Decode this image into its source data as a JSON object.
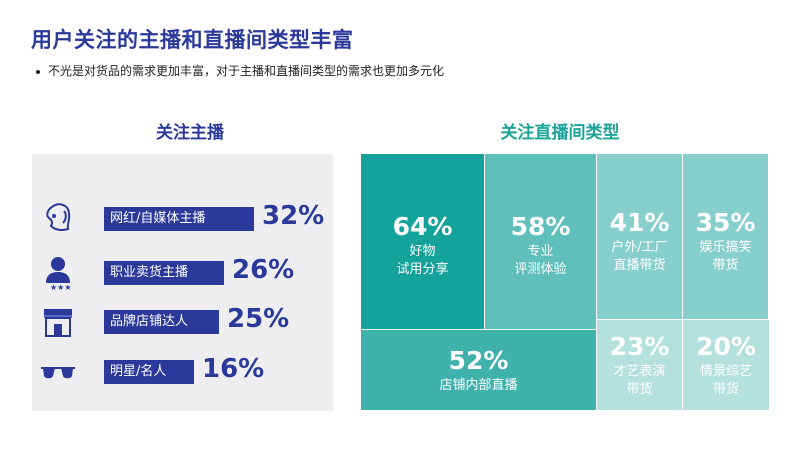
{
  "title": "用户关注的主播和直播间类型丰富",
  "subtitle": "不光是对货品的需求更加丰富，对于主播和直播间类型的需求也更加多元化",
  "chart_data": [
    {
      "type": "bar",
      "title": "关注主播",
      "categories": [
        "网红/自媒体主播",
        "职业卖货主播",
        "品牌店铺达人",
        "明星/名人"
      ],
      "values": [
        32,
        26,
        25,
        16
      ],
      "value_labels": [
        "32%",
        "26%",
        "25%",
        "16%"
      ],
      "icons": [
        "influencer-icon",
        "salesperson-icon",
        "storefront-icon",
        "sunglasses-icon"
      ],
      "colors": {
        "bar": "#2b3a9a",
        "panel": "#eeeef0"
      }
    },
    {
      "type": "treemap",
      "title": "关注直播间类型",
      "items": [
        {
          "label_line1": "好物",
          "label_line2": "试用分享",
          "value": 64,
          "value_label": "64%",
          "color": "#14a39a"
        },
        {
          "label_line1": "专业",
          "label_line2": "评测体验",
          "value": 58,
          "value_label": "58%",
          "color": "#5fbfbb"
        },
        {
          "label_line1": "户外/工厂",
          "label_line2": "直播带货",
          "value": 41,
          "value_label": "41%",
          "color": "#86cfcc"
        },
        {
          "label_line1": "娱乐搞笑",
          "label_line2": "带货",
          "value": 35,
          "value_label": "35%",
          "color": "#86cfcc"
        },
        {
          "label_line1": "店铺内部直播",
          "label_line2": "",
          "value": 52,
          "value_label": "52%",
          "color": "#3fb2ab"
        },
        {
          "label_line1": "才艺表演",
          "label_line2": "带货",
          "value": 23,
          "value_label": "23%",
          "color": "#b4e0de"
        },
        {
          "label_line1": "情景综艺",
          "label_line2": "带货",
          "value": 20,
          "value_label": "20%",
          "color": "#b4e0de"
        }
      ]
    }
  ]
}
